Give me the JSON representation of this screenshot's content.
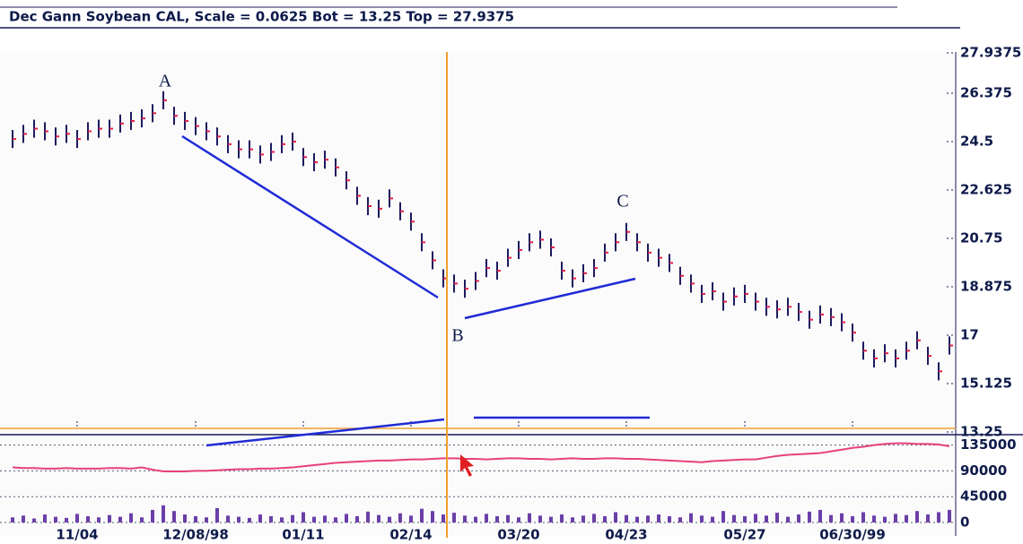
{
  "chart_data": [
    {
      "type": "ohlc",
      "title": "Dec Gann Soybean CAL, Scale = 0.0625 Bot = 13.25 Top = 27.9375",
      "annotations": [
        "A",
        "B",
        "C"
      ],
      "color": "#1b1b5e",
      "close_color": "#e0204a",
      "categories": [
        null,
        null,
        null,
        null,
        null,
        null,
        "11/04",
        null,
        null,
        null,
        null,
        null,
        null,
        null,
        null,
        null,
        null,
        "12/08/98",
        null,
        null,
        null,
        null,
        null,
        null,
        null,
        null,
        null,
        "01/11",
        null,
        null,
        null,
        null,
        null,
        null,
        null,
        null,
        null,
        "02/14",
        null,
        null,
        null,
        null,
        null,
        null,
        null,
        null,
        null,
        "03/20",
        null,
        null,
        null,
        null,
        null,
        null,
        null,
        null,
        null,
        "04/23",
        null,
        null,
        null,
        null,
        null,
        null,
        null,
        null,
        null,
        null,
        "05/27",
        null,
        null,
        null,
        null,
        null,
        null,
        null,
        null,
        null,
        "06/30/99",
        null,
        null,
        null,
        null,
        null,
        null,
        null,
        null,
        null
      ],
      "high": [
        24.95,
        25.15,
        25.35,
        25.25,
        25.05,
        25.15,
        24.95,
        25.25,
        25.35,
        25.35,
        25.55,
        25.65,
        25.75,
        25.95,
        26.45,
        25.85,
        25.65,
        25.45,
        25.25,
        25.05,
        24.75,
        24.55,
        24.55,
        24.35,
        24.45,
        24.75,
        24.85,
        24.25,
        24.05,
        24.15,
        23.85,
        23.35,
        22.75,
        22.35,
        22.25,
        22.65,
        22.15,
        21.75,
        20.95,
        20.25,
        19.55,
        19.35,
        19.15,
        19.45,
        19.95,
        19.85,
        20.35,
        20.65,
        20.95,
        21.05,
        20.75,
        19.85,
        19.55,
        19.75,
        19.95,
        20.55,
        20.95,
        21.35,
        20.95,
        20.55,
        20.35,
        20.15,
        19.65,
        19.35,
        18.95,
        19.05,
        18.65,
        18.85,
        18.95,
        18.65,
        18.45,
        18.35,
        18.45,
        18.25,
        17.95,
        18.15,
        18.05,
        17.85,
        17.45,
        16.75,
        16.45,
        16.65,
        16.45,
        16.75,
        17.15,
        16.55,
        15.95,
        16.95
      ],
      "low": [
        24.25,
        24.45,
        24.65,
        24.55,
        24.35,
        24.45,
        24.25,
        24.55,
        24.65,
        24.65,
        24.85,
        24.95,
        25.05,
        25.25,
        25.75,
        25.15,
        24.95,
        24.75,
        24.55,
        24.35,
        24.05,
        23.85,
        23.85,
        23.65,
        23.75,
        24.05,
        24.15,
        23.55,
        23.35,
        23.45,
        23.15,
        22.65,
        22.05,
        21.65,
        21.55,
        21.95,
        21.45,
        21.05,
        20.25,
        19.55,
        18.85,
        18.65,
        18.45,
        18.75,
        19.25,
        19.15,
        19.65,
        19.95,
        20.25,
        20.35,
        20.05,
        19.15,
        18.85,
        19.05,
        19.25,
        19.85,
        20.25,
        20.65,
        20.25,
        19.85,
        19.65,
        19.45,
        18.95,
        18.65,
        18.25,
        18.35,
        17.95,
        18.15,
        18.25,
        17.95,
        17.75,
        17.65,
        17.75,
        17.55,
        17.25,
        17.45,
        17.35,
        17.15,
        16.75,
        16.05,
        15.75,
        15.95,
        15.75,
        16.05,
        16.45,
        15.85,
        15.25,
        16.25
      ],
      "close": [
        24.6,
        24.8,
        25.0,
        24.9,
        24.7,
        24.8,
        24.6,
        24.9,
        25.0,
        25.0,
        25.2,
        25.3,
        25.4,
        25.6,
        26.1,
        25.5,
        25.3,
        25.1,
        24.9,
        24.7,
        24.4,
        24.2,
        24.2,
        24.0,
        24.1,
        24.4,
        24.5,
        23.9,
        23.7,
        23.8,
        23.5,
        23.0,
        22.4,
        22.0,
        21.9,
        22.3,
        21.8,
        21.4,
        20.6,
        19.9,
        19.2,
        19.0,
        18.8,
        19.1,
        19.6,
        19.5,
        20.0,
        20.3,
        20.6,
        20.7,
        20.4,
        19.5,
        19.2,
        19.4,
        19.6,
        20.2,
        20.6,
        21.0,
        20.6,
        20.2,
        20.0,
        19.8,
        19.3,
        19.0,
        18.6,
        18.7,
        18.3,
        18.5,
        18.6,
        18.3,
        18.1,
        18.0,
        18.1,
        17.9,
        17.6,
        17.8,
        17.7,
        17.5,
        17.1,
        16.4,
        16.1,
        16.3,
        16.1,
        16.4,
        16.8,
        16.2,
        15.6,
        16.6
      ],
      "ylim": [
        13.25,
        27.9375
      ],
      "yticks": [
        13.25,
        15.125,
        17,
        18.875,
        20.75,
        22.625,
        24.5,
        26.375,
        27.9375
      ]
    },
    {
      "type": "volume",
      "ylim": [
        0,
        150000
      ],
      "yticks": [
        0,
        45000,
        90000,
        135000
      ],
      "grid": true,
      "series": [
        {
          "type": "bar",
          "color": "#6b3fa8",
          "values": [
            9000,
            12000,
            7000,
            14000,
            10000,
            8000,
            15000,
            11000,
            9000,
            13000,
            10000,
            16000,
            9000,
            22000,
            30000,
            20000,
            14000,
            11000,
            9000,
            25000,
            12000,
            10000,
            8000,
            14000,
            11000,
            9000,
            13000,
            18000,
            10000,
            12000,
            9000,
            15000,
            11000,
            19000,
            13000,
            10000,
            16000,
            12000,
            24000,
            20000,
            14000,
            17000,
            12000,
            10000,
            15000,
            11000,
            13000,
            9000,
            16000,
            12000,
            10000,
            14000,
            9000,
            12000,
            15000,
            11000,
            18000,
            13000,
            10000,
            12000,
            14000,
            11000,
            9000,
            16000,
            12000,
            10000,
            20000,
            13000,
            11000,
            15000,
            12000,
            17000,
            10000,
            14000,
            19000,
            22000,
            13000,
            16000,
            11000,
            18000,
            12000,
            10000,
            15000,
            13000,
            20000,
            14000,
            18000,
            22000
          ]
        },
        {
          "type": "line",
          "color": "#e8407a",
          "values": [
            96000,
            95000,
            95000,
            94000,
            94000,
            95000,
            94000,
            94000,
            94000,
            95000,
            95000,
            94000,
            96000,
            92000,
            89000,
            89000,
            89000,
            90000,
            90000,
            91000,
            92000,
            93000,
            93000,
            94000,
            94000,
            95000,
            96000,
            98000,
            100000,
            102000,
            104000,
            105000,
            106000,
            107000,
            108000,
            108000,
            109000,
            110000,
            110000,
            111000,
            112000,
            112000,
            111000,
            111000,
            110000,
            111000,
            112000,
            112000,
            111000,
            111000,
            110000,
            111000,
            112000,
            111000,
            111000,
            112000,
            112000,
            111000,
            111000,
            110000,
            109000,
            108000,
            107000,
            106000,
            105000,
            107000,
            108000,
            109000,
            110000,
            110000,
            113000,
            116000,
            118000,
            119000,
            120000,
            121000,
            124000,
            127000,
            130000,
            132000,
            135000,
            137000,
            138000,
            138000,
            137000,
            137000,
            136000,
            133000
          ]
        }
      ]
    }
  ]
}
